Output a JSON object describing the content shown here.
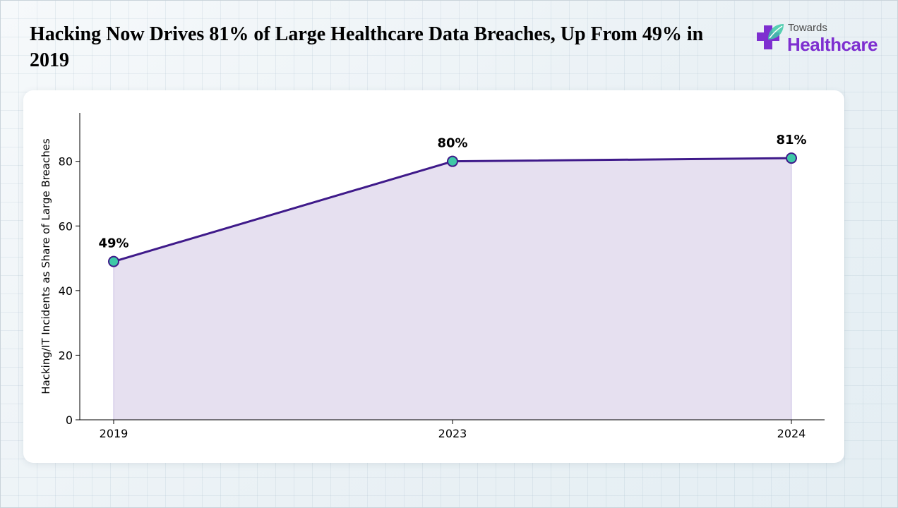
{
  "header": {
    "title": "Hacking Now Drives 81% of Large Healthcare Data Breaches, Up From 49% in 2019"
  },
  "logo": {
    "line1": "Towards",
    "line2": "Healthcare"
  },
  "colors": {
    "line": "#3f1a8a",
    "area_fill": "#e6e0f0",
    "marker_fill": "#3ec9a7",
    "marker_stroke": "#3f1a8a",
    "logo_accent": "#7e2fd0"
  },
  "chart_data": {
    "type": "area",
    "title": "",
    "xlabel": "",
    "ylabel": "Hacking/IT Incidents as Share of Large Breaches",
    "categories": [
      "2019",
      "2023",
      "2024"
    ],
    "values": [
      49,
      80,
      81
    ],
    "data_labels": [
      "49%",
      "80%",
      "81%"
    ],
    "ylim": [
      0,
      95
    ],
    "yticks": [
      0,
      20,
      40,
      60,
      80
    ],
    "grid": false,
    "legend": "none"
  }
}
